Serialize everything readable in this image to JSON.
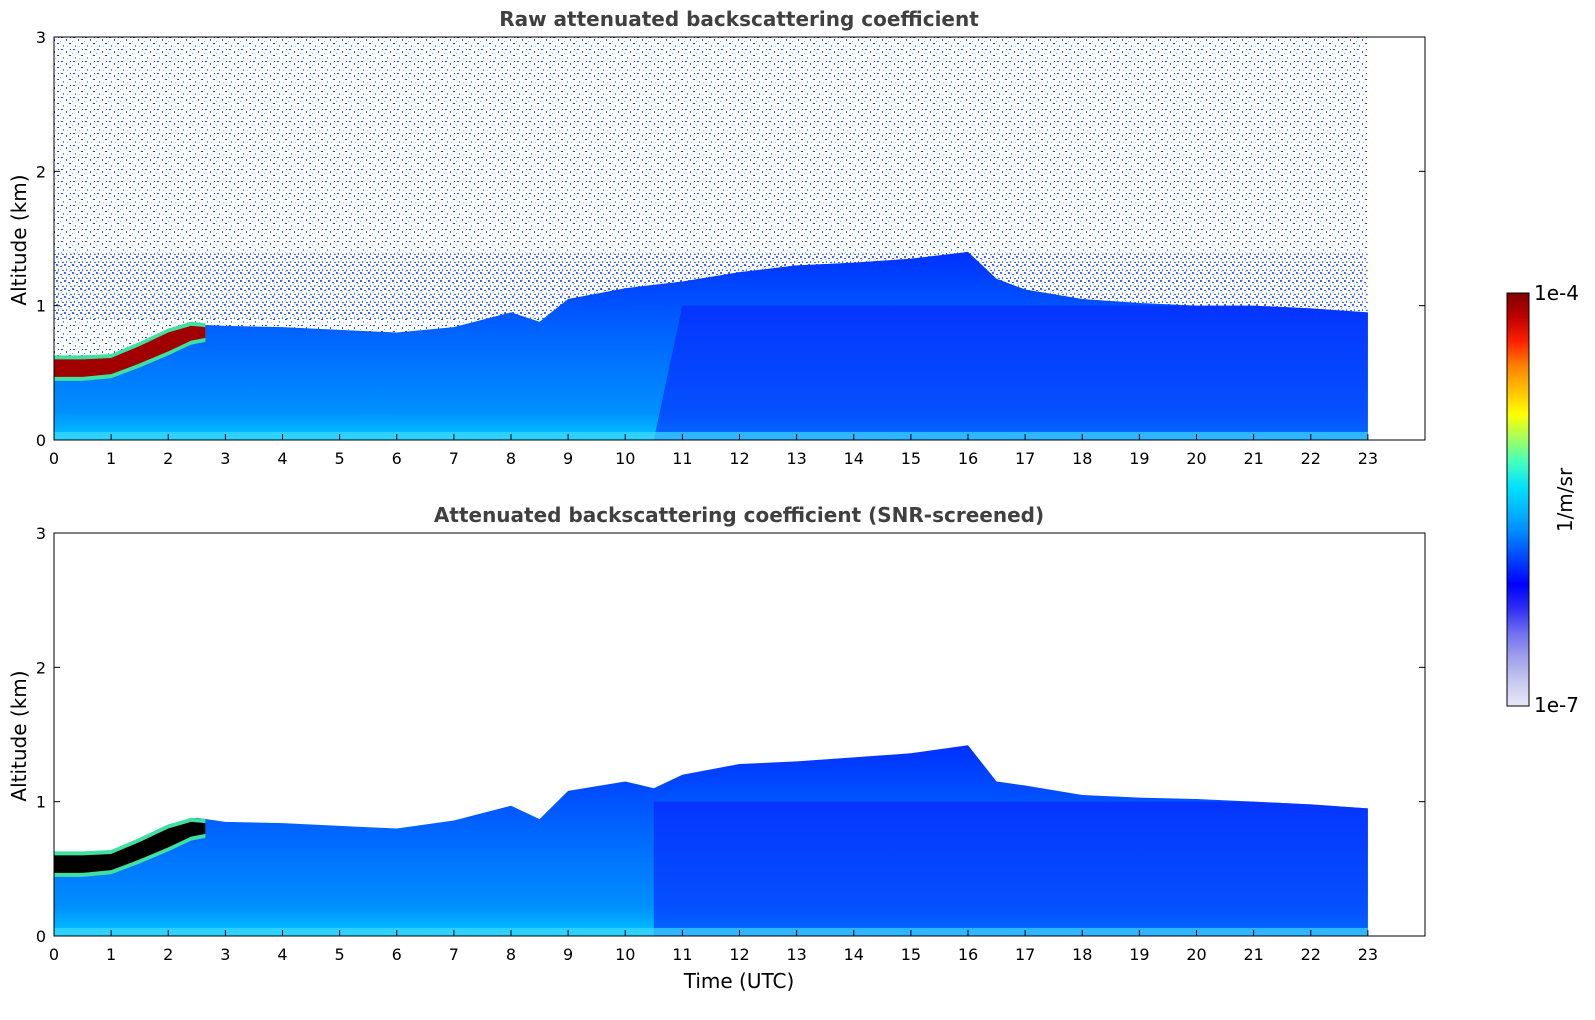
{
  "chart_data": [
    {
      "type": "heatmap",
      "title": "Raw attenuated backscattering coefficient",
      "xlabel": "",
      "ylabel": "Altitude (km)",
      "xlim": [
        0,
        24
      ],
      "ylim": [
        0,
        3
      ],
      "xticks": [
        "0",
        "1",
        "2",
        "3",
        "4",
        "5",
        "6",
        "7",
        "8",
        "9",
        "10",
        "11",
        "12",
        "13",
        "14",
        "15",
        "16",
        "17",
        "18",
        "19",
        "20",
        "21",
        "22",
        "23"
      ],
      "yticks": [
        "0",
        "1",
        "2",
        "3"
      ],
      "data_end_time": 23,
      "screened": false,
      "layer_top_profile": {
        "time": [
          0,
          0.5,
          1,
          1.5,
          2,
          2.5,
          3,
          4,
          5,
          6,
          7,
          8,
          8.5,
          9,
          10,
          11,
          12,
          13,
          14,
          15,
          16,
          16.5,
          17,
          18,
          19,
          20,
          21,
          22,
          23
        ],
        "top_km": [
          0.62,
          0.61,
          0.62,
          0.72,
          0.82,
          0.86,
          0.85,
          0.84,
          0.82,
          0.8,
          0.84,
          0.95,
          0.88,
          1.05,
          1.13,
          1.18,
          1.25,
          1.3,
          1.32,
          1.35,
          1.4,
          1.2,
          1.12,
          1.05,
          1.02,
          1.0,
          1.0,
          0.98,
          0.95
        ]
      },
      "cloud_layer": {
        "time": [
          0,
          0.5,
          1,
          1.5,
          2,
          2.4,
          2.65
        ],
        "base_km": [
          0.47,
          0.47,
          0.49,
          0.57,
          0.66,
          0.74,
          0.76
        ],
        "top_km": [
          0.6,
          0.6,
          0.61,
          0.7,
          0.8,
          0.85,
          0.84
        ]
      }
    },
    {
      "type": "heatmap",
      "title": "Attenuated backscattering coefficient (SNR-screened)",
      "xlabel": "Time (UTC)",
      "ylabel": "Altitude (km)",
      "xlim": [
        0,
        24
      ],
      "ylim": [
        0,
        3
      ],
      "xticks": [
        "0",
        "1",
        "2",
        "3",
        "4",
        "5",
        "6",
        "7",
        "8",
        "9",
        "10",
        "11",
        "12",
        "13",
        "14",
        "15",
        "16",
        "17",
        "18",
        "19",
        "20",
        "21",
        "22",
        "23"
      ],
      "yticks": [
        "0",
        "1",
        "2",
        "3"
      ],
      "data_end_time": 23,
      "screened": true,
      "layer_top_profile": {
        "time": [
          0,
          0.5,
          1,
          1.5,
          2,
          2.5,
          3,
          4,
          5,
          6,
          7,
          8,
          8.5,
          9,
          10,
          10.5,
          11,
          12,
          13,
          14,
          15,
          16,
          16.5,
          17,
          18,
          19,
          20,
          21,
          22,
          23
        ],
        "top_km": [
          0.63,
          0.62,
          0.63,
          0.73,
          0.83,
          0.88,
          0.85,
          0.84,
          0.82,
          0.8,
          0.86,
          0.97,
          0.87,
          1.08,
          1.15,
          1.1,
          1.2,
          1.28,
          1.3,
          1.33,
          1.36,
          1.42,
          1.15,
          1.12,
          1.05,
          1.03,
          1.02,
          1.0,
          0.98,
          0.95
        ]
      },
      "cloud_layer": {
        "time": [
          0,
          0.5,
          1,
          1.5,
          2,
          2.4,
          2.65
        ],
        "base_km": [
          0.47,
          0.47,
          0.49,
          0.57,
          0.66,
          0.74,
          0.76
        ],
        "top_km": [
          0.6,
          0.6,
          0.61,
          0.7,
          0.8,
          0.85,
          0.84
        ]
      }
    }
  ],
  "colorbar": {
    "label": "1/m/sr",
    "max_label": "1e-4",
    "min_label": "1e-7",
    "colors": [
      "#e8e8f8",
      "#c8c8f0",
      "#a0a0ec",
      "#7070f0",
      "#3030f4",
      "#0000ff",
      "#0040ff",
      "#0080ff",
      "#00b4ff",
      "#00e0ff",
      "#40ffc0",
      "#a0ff60",
      "#ffff00",
      "#ffc000",
      "#ff8000",
      "#ff2000",
      "#c00000",
      "#800000"
    ]
  }
}
